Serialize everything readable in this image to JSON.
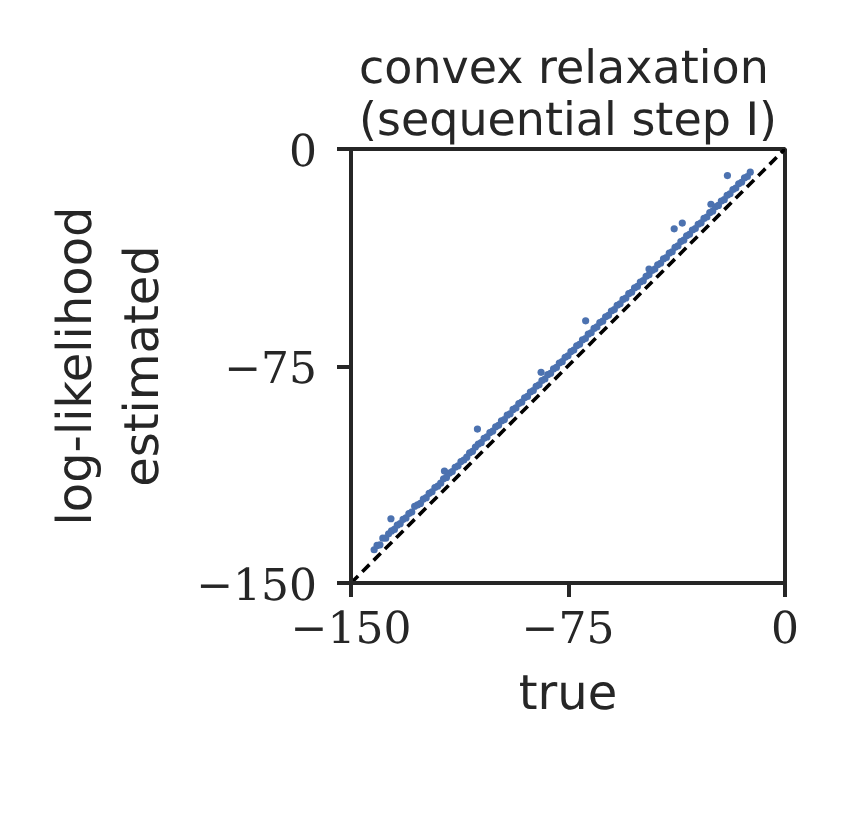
{
  "chart_data": {
    "type": "scatter",
    "title": "convex relaxation\n(sequential step I)",
    "xlabel": "true",
    "ylabel": "log-likelihood\nestimated",
    "xlim": [
      -150,
      0
    ],
    "ylim": [
      -150,
      0
    ],
    "xticks": [
      -150,
      -75,
      0
    ],
    "yticks": [
      -150,
      -75,
      0
    ],
    "series": [
      {
        "color": "#4c72b0",
        "marker": "circle",
        "x": [
          -142,
          -141,
          -140,
          -139,
          -138,
          -137,
          -136.2,
          -136,
          -135,
          -134,
          -133,
          -132,
          -131,
          -130,
          -129,
          -128,
          -127,
          -126,
          -125,
          -124,
          -123,
          -122,
          -121,
          -120,
          -119,
          -117.7,
          -118,
          -117,
          -116,
          -115,
          -114,
          -113,
          -112,
          -111,
          -110,
          -109,
          -108,
          -106.3,
          -107,
          -106,
          -105,
          -104,
          -103,
          -102,
          -101,
          -100,
          -99,
          -98,
          -97,
          -96,
          -95,
          -94,
          -93,
          -92,
          -91,
          -90,
          -89,
          -88,
          -87,
          -86,
          -85,
          -84.3,
          -84,
          -83,
          -82,
          -81,
          -80,
          -79,
          -78,
          -77,
          -76,
          -75,
          -74,
          -73,
          -72,
          -71,
          -70,
          -68.9,
          -69,
          -68,
          -67,
          -66,
          -65,
          -64,
          -63,
          -62,
          -61,
          -60,
          -59,
          -58,
          -57,
          -56,
          -55,
          -54,
          -53,
          -52,
          -51,
          -50,
          -49,
          -48,
          -47,
          -47,
          -46,
          -45,
          -44,
          -43,
          -42,
          -41,
          -40,
          -39,
          -38.3,
          -38,
          -37,
          -36,
          -35.5,
          -35,
          -34,
          -33,
          -32,
          -31,
          -30,
          -29,
          -28,
          -27,
          -26,
          -25.6,
          -25,
          -24,
          -23,
          -22,
          -21,
          -20,
          -19.9,
          -19,
          -18,
          -17,
          -16,
          -15,
          -14,
          -13,
          -12
        ],
        "values": [
          -138.5,
          -137,
          -136.8,
          -134.5,
          -134.5,
          -133,
          -127.8,
          -132,
          -131.5,
          -130,
          -129.5,
          -128,
          -127.5,
          -126,
          -125.5,
          -123.5,
          -123,
          -122.5,
          -121,
          -120.5,
          -119,
          -118.5,
          -117,
          -116.5,
          -115.5,
          -111.3,
          -114,
          -113.5,
          -112,
          -111.5,
          -110,
          -109.5,
          -108,
          -107.5,
          -106.5,
          -105,
          -104.5,
          -96.8,
          -103,
          -102,
          -101.5,
          -100,
          -99.5,
          -98,
          -97.5,
          -96,
          -95.5,
          -94,
          -93.5,
          -92,
          -91.5,
          -90,
          -89.5,
          -88,
          -87.5,
          -86,
          -85.5,
          -84,
          -83.5,
          -82,
          -81.5,
          -77.2,
          -80,
          -79.5,
          -78,
          -77.5,
          -76,
          -75.5,
          -74,
          -73.5,
          -72,
          -71.5,
          -70,
          -69.5,
          -68,
          -67.5,
          -66,
          -59.4,
          -65.5,
          -64,
          -63.5,
          -62,
          -61.5,
          -60,
          -59.5,
          -58,
          -57.5,
          -56,
          -55.5,
          -54,
          -53.5,
          -52,
          -51.5,
          -50,
          -49.5,
          -48,
          -47.5,
          -46,
          -45.5,
          -44,
          -41.5,
          -43.5,
          -42,
          -41.5,
          -40,
          -39.5,
          -38,
          -37.5,
          -36,
          -35.5,
          -27.6,
          -34,
          -33.5,
          -32,
          -25.6,
          -31.5,
          -30,
          -29.5,
          -28,
          -27.5,
          -26,
          -25.5,
          -24,
          -23.5,
          -22,
          -19.1,
          -21.5,
          -20,
          -19.5,
          -18,
          -17.5,
          -16,
          -9.2,
          -15.5,
          -14,
          -13.5,
          -12,
          -11.5,
          -10,
          -9.5,
          -8
        ]
      },
      {
        "type": "line",
        "color": "#000000",
        "line_style": "dashed",
        "x": [
          -150,
          0
        ],
        "values": [
          -150,
          0
        ]
      }
    ]
  }
}
